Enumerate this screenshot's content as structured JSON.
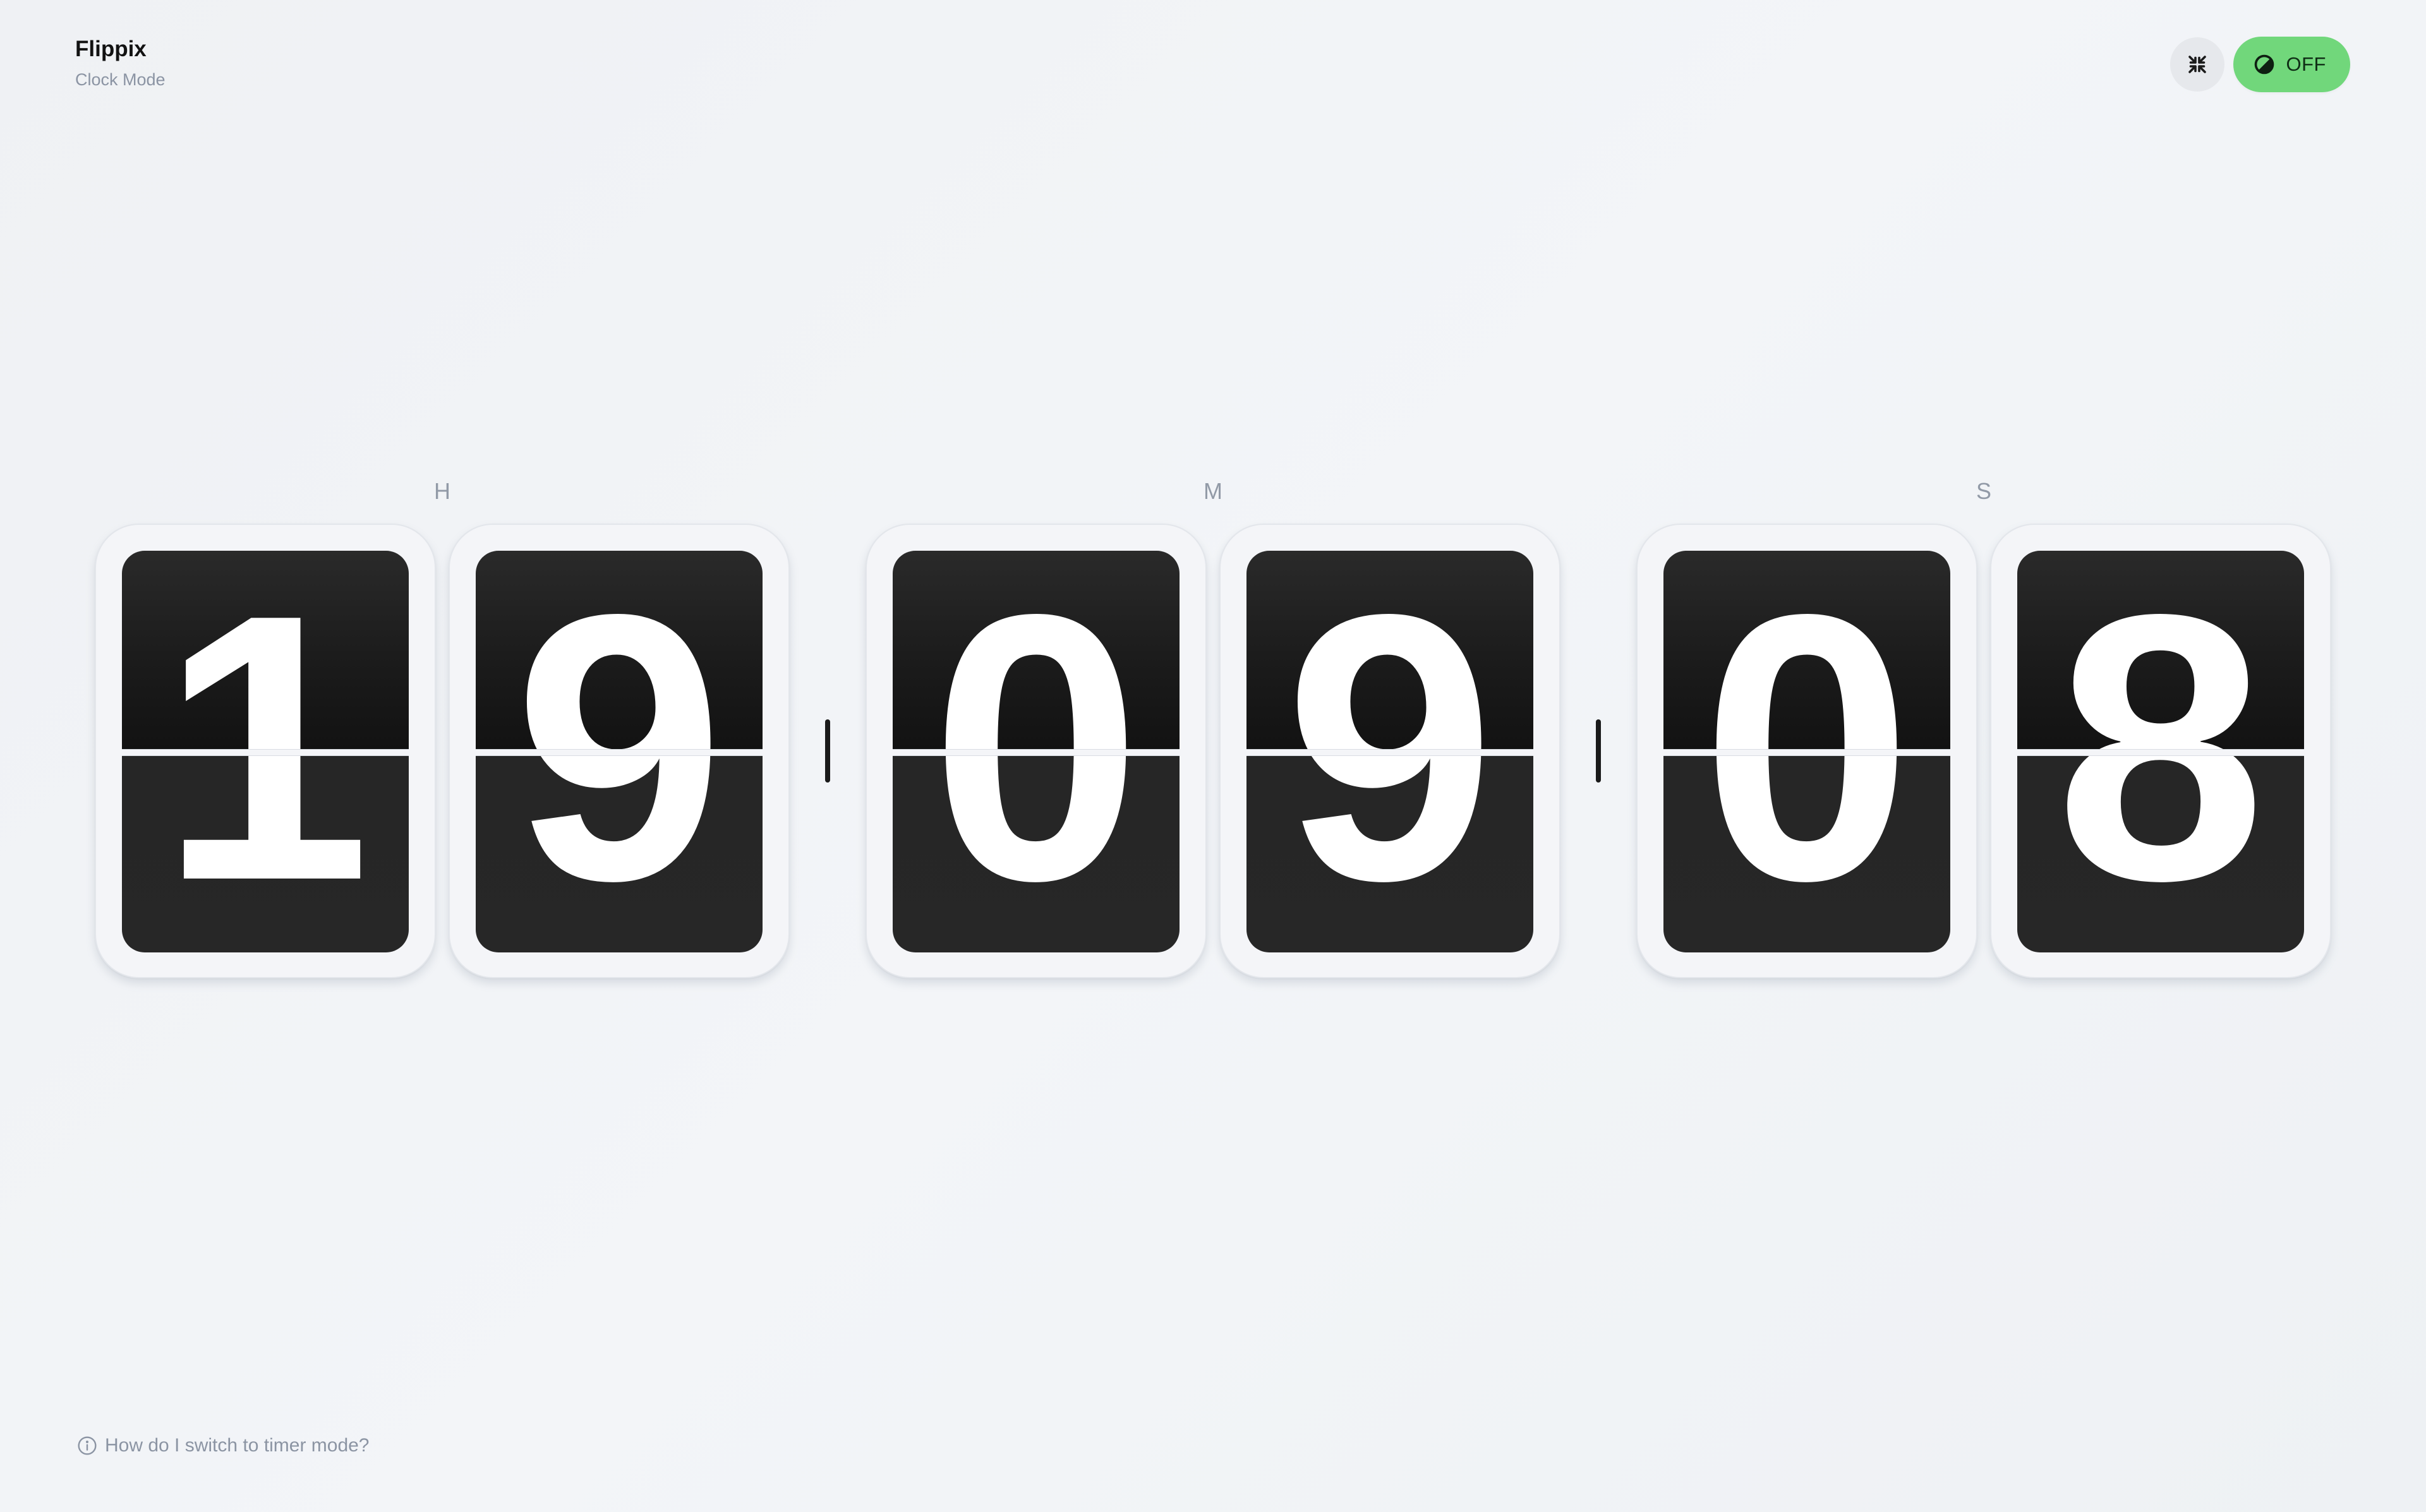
{
  "app": {
    "title": "Flippix",
    "subtitle": "Clock Mode"
  },
  "controls": {
    "fullscreen_icon": "collapse-arrows-icon",
    "theme_toggle": {
      "icon": "half-moon-contrast-icon",
      "label": "OFF",
      "color": "#71d77b"
    }
  },
  "clock": {
    "groups": [
      {
        "label": "H",
        "digits": [
          "1",
          "9"
        ]
      },
      {
        "label": "M",
        "digits": [
          "0",
          "9"
        ]
      },
      {
        "label": "S",
        "digits": [
          "0",
          "8"
        ]
      }
    ],
    "time": "19:09:08"
  },
  "footer": {
    "help_icon": "info-circle-icon",
    "help_text": "How do I switch to timer mode?"
  }
}
